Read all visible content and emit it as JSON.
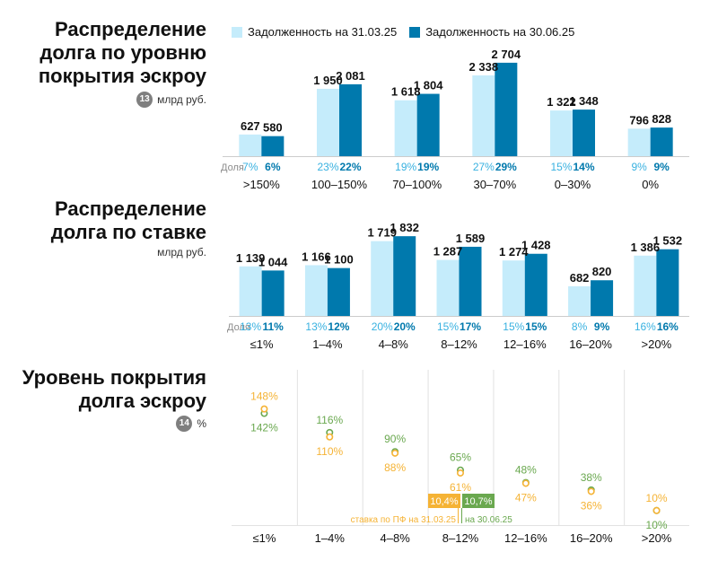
{
  "legend": {
    "items": [
      {
        "label": "Задолженность на 31.03.25",
        "color": "#c5ecfb"
      },
      {
        "label": "Задолженность на 30.06.25",
        "color": "#0079ad"
      }
    ]
  },
  "section1": {
    "title_lines": [
      "Распределение",
      "долга по уровню",
      "покрытия эскроу"
    ],
    "badge": "13",
    "unit": "млрд руб."
  },
  "section2": {
    "title_lines": [
      "Распределение",
      "долга по ставке"
    ],
    "unit": "млрд руб."
  },
  "section3": {
    "title_lines": [
      "Уровень покрытия",
      "долга эскроу"
    ],
    "badge": "14",
    "unit": "%"
  },
  "share_label": "Доля",
  "colors": {
    "bar_prev": "#c5ecfb",
    "bar_curr": "#0079ad",
    "share_prev": "#38b1e0",
    "share_curr": "#0079ad",
    "orange": "#f5b335",
    "green": "#6aa84f",
    "grid": "#e2e2e2",
    "baseline": "#cccccc"
  },
  "chart_data": [
    {
      "type": "bar",
      "title": "Распределение долга по уровню покрытия эскроу",
      "unit": "млрд руб.",
      "categories": [
        ">150%",
        "100–150%",
        "70–100%",
        "30–70%",
        "0–30%",
        "0%"
      ],
      "series": [
        {
          "name": "Задолженность на 31.03.25",
          "values": [
            627,
            1950,
            1618,
            2338,
            1322,
            796
          ],
          "value_labels": [
            "627",
            "1 950",
            "1 618",
            "2 338",
            "1 322",
            "796"
          ],
          "shares": [
            "7%",
            "23%",
            "19%",
            "27%",
            "15%",
            "9%"
          ]
        },
        {
          "name": "Задолженность на 30.06.25",
          "values": [
            580,
            2081,
            1804,
            2704,
            1348,
            828
          ],
          "value_labels": [
            "580",
            "2 081",
            "1 804",
            "2 704",
            "1 348",
            "828"
          ],
          "shares": [
            "6%",
            "22%",
            "19%",
            "29%",
            "14%",
            "9%"
          ]
        }
      ]
    },
    {
      "type": "bar",
      "title": "Распределение долга по ставке",
      "unit": "млрд руб.",
      "categories": [
        "≤1%",
        "1–4%",
        "4–8%",
        "8–12%",
        "12–16%",
        "16–20%",
        ">20%"
      ],
      "series": [
        {
          "name": "Задолженность на 31.03.25",
          "values": [
            1139,
            1166,
            1719,
            1287,
            1274,
            682,
            1386
          ],
          "value_labels": [
            "1 139",
            "1 166",
            "1 719",
            "1 287",
            "1 274",
            "682",
            "1 386"
          ],
          "shares": [
            "13%",
            "13%",
            "20%",
            "15%",
            "15%",
            "8%",
            "16%"
          ]
        },
        {
          "name": "Задолженность на 30.06.25",
          "values": [
            1044,
            1100,
            1832,
            1589,
            1428,
            820,
            1532
          ],
          "value_labels": [
            "1 044",
            "1 100",
            "1 832",
            "1 589",
            "1 428",
            "820",
            "1 532"
          ],
          "shares": [
            "11%",
            "12%",
            "20%",
            "17%",
            "15%",
            "9%",
            "16%"
          ]
        }
      ]
    },
    {
      "type": "scatter",
      "title": "Уровень покрытия долга эскроу",
      "unit": "%",
      "categories": [
        "≤1%",
        "1–4%",
        "4–8%",
        "8–12%",
        "12–16%",
        "16–20%",
        ">20%"
      ],
      "series": [
        {
          "name": "31.03.25",
          "color": "#f5b335",
          "values": [
            148,
            110,
            88,
            61,
            47,
            36,
            10
          ]
        },
        {
          "name": "30.06.25",
          "color": "#6aa84f",
          "values": [
            142,
            116,
            90,
            65,
            48,
            38,
            10
          ]
        }
      ],
      "label_text": {
        "orange": [
          "148%",
          "110%",
          "88%",
          "61%",
          "47%",
          "36%",
          "10%"
        ],
        "green": [
          "142%",
          "116%",
          "90%",
          "65%",
          "48%",
          "38%",
          "10%"
        ]
      },
      "annotations": [
        {
          "badge": "10,4%",
          "text": "ставка по ПФ на 31.03.25",
          "color": "#f5b335"
        },
        {
          "badge": "10,7%",
          "text": "на 30.06.25",
          "color": "#6aa84f"
        }
      ]
    }
  ]
}
